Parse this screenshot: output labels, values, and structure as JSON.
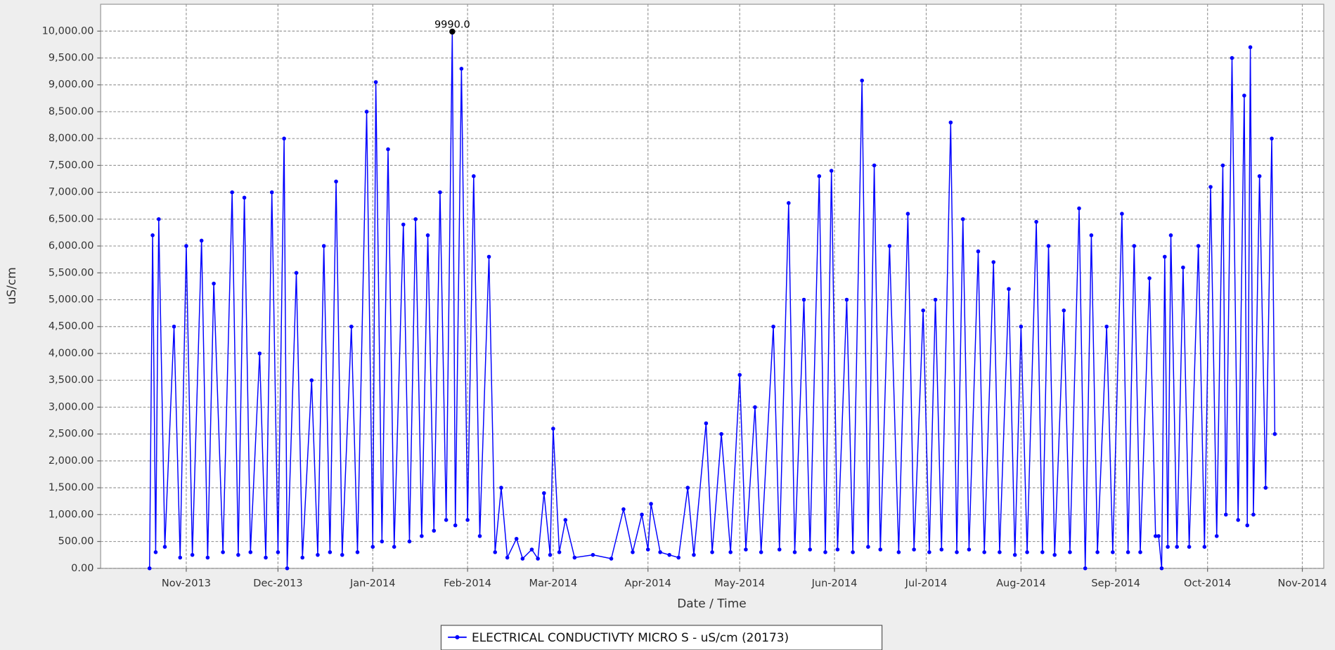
{
  "chart_data": {
    "type": "line",
    "xlabel": "Date / Time",
    "ylabel": "uS/cm",
    "xlim": [
      "2013-10-04",
      "2014-11-08"
    ],
    "ylim": [
      0,
      10500
    ],
    "grid": true,
    "legend": "bottom",
    "xticks": [
      {
        "value": "2013-11-01",
        "label": "Nov-2013"
      },
      {
        "value": "2013-12-01",
        "label": "Dec-2013"
      },
      {
        "value": "2014-01-01",
        "label": "Jan-2014"
      },
      {
        "value": "2014-02-01",
        "label": "Feb-2014"
      },
      {
        "value": "2014-03-01",
        "label": "Mar-2014"
      },
      {
        "value": "2014-04-01",
        "label": "Apr-2014"
      },
      {
        "value": "2014-05-01",
        "label": "May-2014"
      },
      {
        "value": "2014-06-01",
        "label": "Jun-2014"
      },
      {
        "value": "2014-07-01",
        "label": "Jul-2014"
      },
      {
        "value": "2014-08-01",
        "label": "Aug-2014"
      },
      {
        "value": "2014-09-01",
        "label": "Sep-2014"
      },
      {
        "value": "2014-10-01",
        "label": "Oct-2014"
      },
      {
        "value": "2014-11-01",
        "label": "Nov-2014"
      }
    ],
    "yticks": [
      {
        "value": 0,
        "label": "0.00"
      },
      {
        "value": 500,
        "label": "500.00"
      },
      {
        "value": 1000,
        "label": "1,000.00"
      },
      {
        "value": 1500,
        "label": "1,500.00"
      },
      {
        "value": 2000,
        "label": "2,000.00"
      },
      {
        "value": 2500,
        "label": "2,500.00"
      },
      {
        "value": 3000,
        "label": "3,000.00"
      },
      {
        "value": 3500,
        "label": "3,500.00"
      },
      {
        "value": 4000,
        "label": "4,000.00"
      },
      {
        "value": 4500,
        "label": "4,500.00"
      },
      {
        "value": 5000,
        "label": "5,000.00"
      },
      {
        "value": 5500,
        "label": "5,500.00"
      },
      {
        "value": 6000,
        "label": "6,000.00"
      },
      {
        "value": 6500,
        "label": "6,500.00"
      },
      {
        "value": 7000,
        "label": "7,000.00"
      },
      {
        "value": 7500,
        "label": "7,500.00"
      },
      {
        "value": 8000,
        "label": "8,000.00"
      },
      {
        "value": 8500,
        "label": "8,500.00"
      },
      {
        "value": 9000,
        "label": "9,000.00"
      },
      {
        "value": 9500,
        "label": "9,500.00"
      },
      {
        "value": 10000,
        "label": "10,000.00"
      }
    ],
    "annotations": [
      {
        "text": "9990.0",
        "x": "2014-01-27",
        "y": 9990
      }
    ],
    "x": [
      "2013-10-20",
      "2013-10-21",
      "2013-10-22",
      "2013-10-23",
      "2013-10-25",
      "2013-10-28",
      "2013-10-30",
      "2013-11-01",
      "2013-11-03",
      "2013-11-06",
      "2013-11-08",
      "2013-11-10",
      "2013-11-13",
      "2013-11-16",
      "2013-11-18",
      "2013-11-20",
      "2013-11-22",
      "2013-11-25",
      "2013-11-27",
      "2013-11-29",
      "2013-12-01",
      "2013-12-03",
      "2013-12-04",
      "2013-12-07",
      "2013-12-09",
      "2013-12-12",
      "2013-12-14",
      "2013-12-16",
      "2013-12-18",
      "2013-12-20",
      "2013-12-22",
      "2013-12-25",
      "2013-12-27",
      "2013-12-30",
      "2014-01-01",
      "2014-01-02",
      "2014-01-04",
      "2014-01-06",
      "2014-01-08",
      "2014-01-11",
      "2014-01-13",
      "2014-01-15",
      "2014-01-17",
      "2014-01-19",
      "2014-01-21",
      "2014-01-23",
      "2014-01-25",
      "2014-01-27",
      "2014-01-28",
      "2014-01-30",
      "2014-02-01",
      "2014-02-03",
      "2014-02-05",
      "2014-02-08",
      "2014-02-10",
      "2014-02-12",
      "2014-02-14",
      "2014-02-17",
      "2014-02-19",
      "2014-02-22",
      "2014-02-24",
      "2014-02-26",
      "2014-02-28",
      "2014-03-01",
      "2014-03-03",
      "2014-03-05",
      "2014-03-08",
      "2014-03-14",
      "2014-03-20",
      "2014-03-24",
      "2014-03-27",
      "2014-03-30",
      "2014-04-01",
      "2014-04-02",
      "2014-04-05",
      "2014-04-08",
      "2014-04-11",
      "2014-04-14",
      "2014-04-16",
      "2014-04-20",
      "2014-04-22",
      "2014-04-25",
      "2014-04-28",
      "2014-05-01",
      "2014-05-03",
      "2014-05-06",
      "2014-05-08",
      "2014-05-12",
      "2014-05-14",
      "2014-05-17",
      "2014-05-19",
      "2014-05-22",
      "2014-05-24",
      "2014-05-27",
      "2014-05-29",
      "2014-05-31",
      "2014-06-02",
      "2014-06-05",
      "2014-06-07",
      "2014-06-10",
      "2014-06-12",
      "2014-06-14",
      "2014-06-16",
      "2014-06-19",
      "2014-06-22",
      "2014-06-25",
      "2014-06-27",
      "2014-06-30",
      "2014-07-02",
      "2014-07-04",
      "2014-07-06",
      "2014-07-09",
      "2014-07-11",
      "2014-07-13",
      "2014-07-15",
      "2014-07-18",
      "2014-07-20",
      "2014-07-23",
      "2014-07-25",
      "2014-07-28",
      "2014-07-30",
      "2014-08-01",
      "2014-08-03",
      "2014-08-06",
      "2014-08-08",
      "2014-08-10",
      "2014-08-12",
      "2014-08-15",
      "2014-08-17",
      "2014-08-20",
      "2014-08-22",
      "2014-08-24",
      "2014-08-26",
      "2014-08-29",
      "2014-08-31",
      "2014-09-03",
      "2014-09-05",
      "2014-09-07",
      "2014-09-09",
      "2014-09-12",
      "2014-09-14",
      "2014-09-15",
      "2014-09-16",
      "2014-09-17",
      "2014-09-18",
      "2014-09-19",
      "2014-09-21",
      "2014-09-23",
      "2014-09-25",
      "2014-09-28",
      "2014-09-30",
      "2014-10-02",
      "2014-10-04",
      "2014-10-06",
      "2014-10-07",
      "2014-10-09",
      "2014-10-11",
      "2014-10-13",
      "2014-10-14",
      "2014-10-15",
      "2014-10-16",
      "2014-10-18",
      "2014-10-20",
      "2014-10-22",
      "2014-10-23"
    ],
    "series": [
      {
        "name": "ELECTRICAL CONDUCTIVTY MICRO S - uS/cm (20173)",
        "color": "#0000ff",
        "values": [
          0,
          6200,
          300,
          6500,
          400,
          4500,
          200,
          6000,
          250,
          6100,
          200,
          5300,
          300,
          7000,
          250,
          6900,
          300,
          4000,
          200,
          7000,
          300,
          8000,
          0,
          5500,
          200,
          3500,
          250,
          6000,
          300,
          7200,
          250,
          4500,
          300,
          8500,
          400,
          9050,
          500,
          7800,
          400,
          6400,
          500,
          6500,
          600,
          6200,
          700,
          7000,
          900,
          9990,
          800,
          9300,
          900,
          7300,
          600,
          5800,
          300,
          1500,
          200,
          550,
          180,
          350,
          180,
          1400,
          250,
          2600,
          300,
          900,
          200,
          250,
          180,
          1100,
          300,
          1000,
          350,
          1200,
          300,
          250,
          200,
          1500,
          250,
          2700,
          300,
          2500,
          300,
          3600,
          350,
          3000,
          300,
          4500,
          350,
          6800,
          300,
          5000,
          350,
          7300,
          300,
          7400,
          350,
          5000,
          300,
          9080,
          400,
          7500,
          350,
          6000,
          300,
          6600,
          350,
          4800,
          300,
          5000,
          350,
          8300,
          300,
          6500,
          350,
          5900,
          300,
          5700,
          300,
          5200,
          250,
          4500,
          300,
          6450,
          300,
          6000,
          250,
          4800,
          300,
          6700,
          0,
          6200,
          300,
          4500,
          300,
          6600,
          300,
          6000,
          300,
          5400,
          600,
          600,
          0,
          5800,
          400,
          6200,
          400,
          5600,
          400,
          6000,
          400,
          7100,
          600,
          7500,
          1000,
          9500,
          900,
          8800,
          800,
          9700,
          1000,
          7300,
          1500,
          8000,
          2500
        ]
      }
    ]
  }
}
